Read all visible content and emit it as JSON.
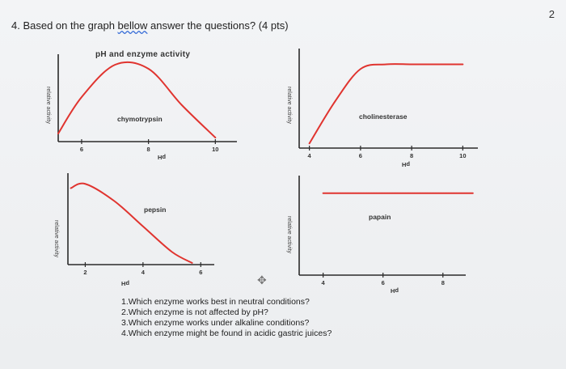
{
  "page_number": "2",
  "header": {
    "prefix": "4. Based on the graph ",
    "link_word": "bellow",
    "suffix": " answer the questions? (4 pts)"
  },
  "questions": [
    "1.Which enzyme works best in neutral conditions?",
    "2.Which enzyme is not affected by pH?",
    "3.Which enzyme works under alkaline conditions?",
    "4.Which enzyme might be found in acidic gastric juices?"
  ],
  "colors": {
    "curve": "#e0342f",
    "axis": "#2a2a2a",
    "text": "#333333"
  },
  "icons": {
    "move": "move-icon"
  },
  "chart_data": [
    {
      "type": "line",
      "title": "pH and enzyme activity",
      "series": [
        {
          "name": "chymotrypsin",
          "x": [
            5.3,
            6,
            7,
            8,
            9,
            10
          ],
          "y": [
            0.1,
            0.55,
            0.95,
            0.9,
            0.45,
            0.05
          ]
        }
      ],
      "xlabel": "pH",
      "ylabel": "relative activity",
      "xlim": [
        5.3,
        10.5
      ],
      "ylim": [
        0,
        1
      ],
      "xticks": [
        6,
        8,
        10
      ],
      "xtick_labels": [
        "6",
        "8",
        "10"
      ]
    },
    {
      "type": "line",
      "title": "",
      "series": [
        {
          "name": "cholinesterase",
          "x": [
            4,
            5,
            6,
            7,
            8,
            9,
            10
          ],
          "y": [
            0.05,
            0.5,
            0.85,
            0.9,
            0.9,
            0.9,
            0.9
          ]
        }
      ],
      "xlabel": "pH",
      "ylabel": "relative activity",
      "xlim": [
        3.6,
        10.4
      ],
      "ylim": [
        0,
        1
      ],
      "xticks": [
        4,
        6,
        8,
        10
      ],
      "xtick_labels": [
        "4",
        "6",
        "8",
        "10"
      ]
    },
    {
      "type": "line",
      "title": "",
      "series": [
        {
          "name": "pepsin",
          "x": [
            1.5,
            2,
            3,
            4,
            5,
            5.7
          ],
          "y": [
            0.9,
            0.95,
            0.75,
            0.45,
            0.15,
            0.02
          ]
        }
      ],
      "xlabel": "pH",
      "ylabel": "relative activity",
      "xlim": [
        1.4,
        6.3
      ],
      "ylim": [
        0,
        1
      ],
      "xticks": [
        2,
        4,
        6
      ],
      "xtick_labels": [
        "2",
        "4",
        "6"
      ]
    },
    {
      "type": "line",
      "title": "",
      "series": [
        {
          "name": "papain",
          "x": [
            4,
            5,
            6,
            7,
            8,
            9
          ],
          "y": [
            0.88,
            0.88,
            0.88,
            0.88,
            0.88,
            0.88
          ]
        }
      ],
      "xlabel": "pH",
      "ylabel": "relative activity",
      "xlim": [
        3.2,
        8.6
      ],
      "ylim": [
        0,
        1
      ],
      "xticks": [
        4,
        6,
        8
      ],
      "xtick_labels": [
        "4",
        "6",
        "8"
      ]
    }
  ]
}
